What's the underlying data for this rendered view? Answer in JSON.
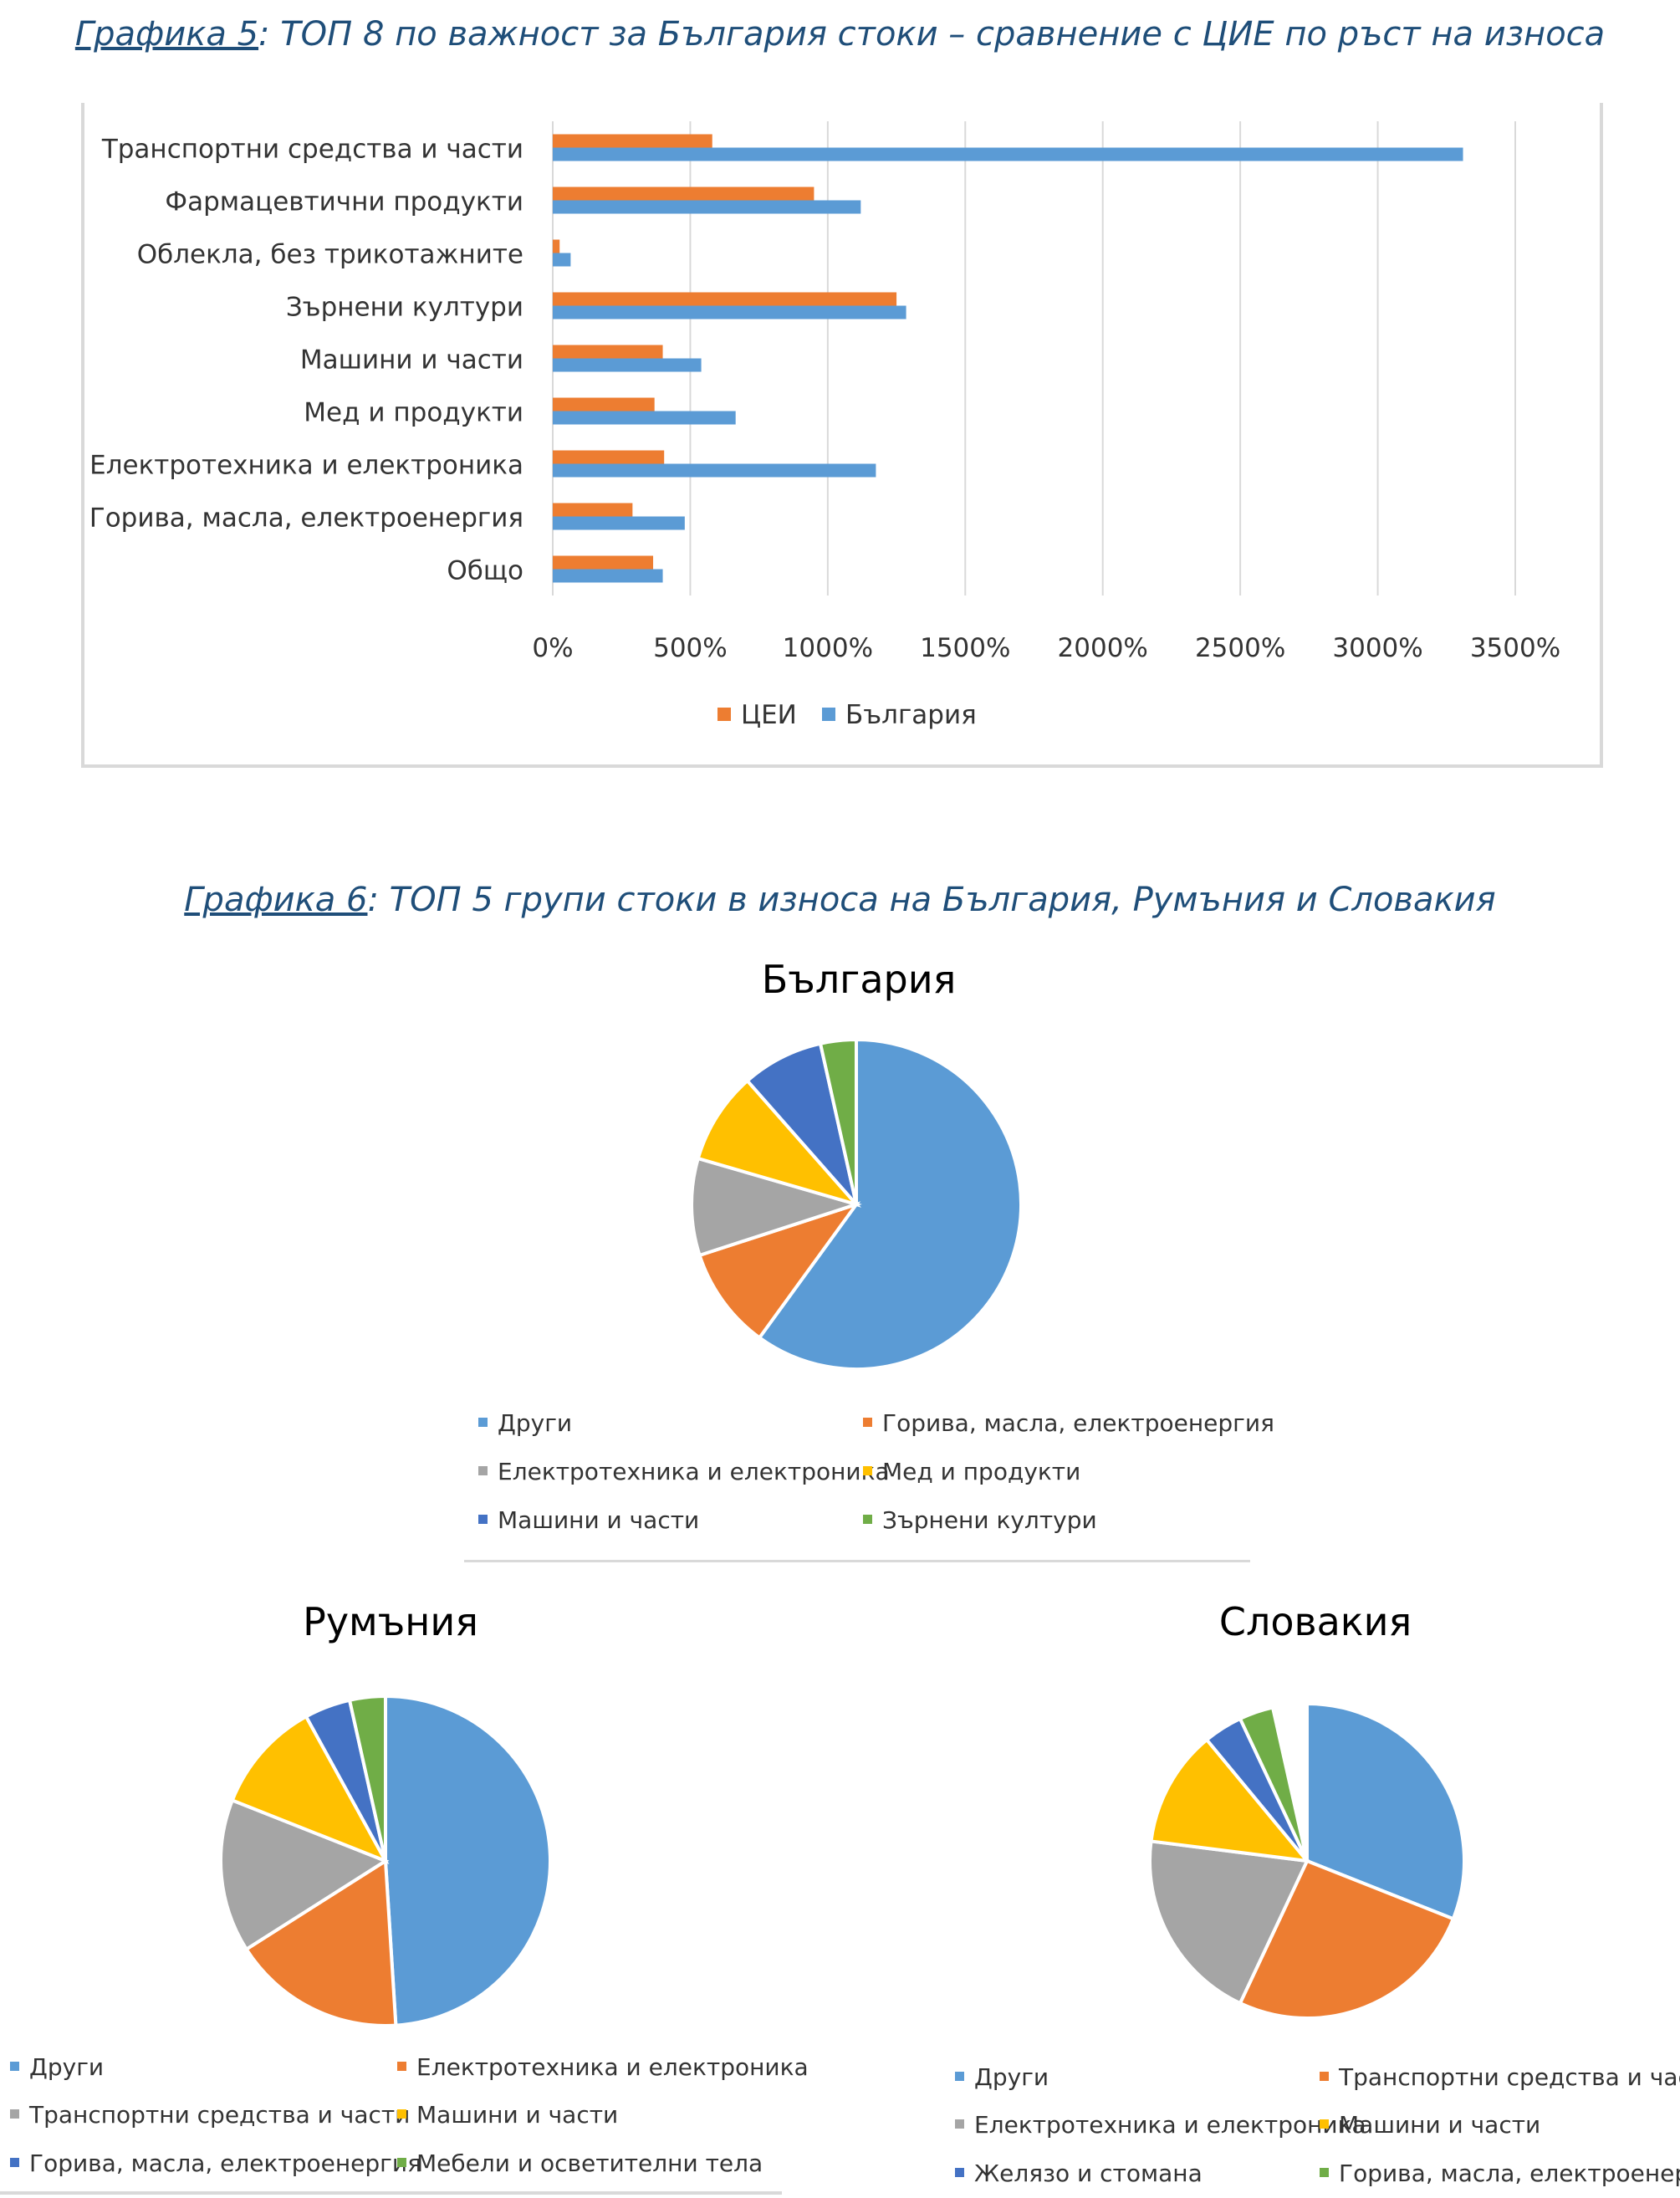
{
  "fig5": {
    "ref": "Графика 5",
    "caption": ": ТОП 8 по важност за България стоки – сравнение с ЦИЕ по ръст на износа"
  },
  "fig6": {
    "ref": "Графика 6",
    "caption": ": ТОП 5 групи стоки в износа на България, Румъния и Словакия"
  },
  "colors": {
    "blue": "#5b9bd5",
    "orange": "#ed7d31",
    "gray": "#a5a5a5",
    "yellow": "#ffc000",
    "darkblue": "#4472c4",
    "green": "#70ad47",
    "grid": "#d9d9d9"
  },
  "chart_data": [
    {
      "type": "bar",
      "orientation": "horizontal",
      "title": "",
      "categories": [
        "Транспортни средства и части",
        "Фармацевтични продукти",
        "Облекла, без трикотажните",
        "Зърнени култури",
        "Машини и части",
        "Мед и продукти",
        "Електротехника и електроника",
        "Горива, масла, електроенергия",
        "Общо"
      ],
      "series": [
        {
          "name": "ЦЕИ",
          "color": "#ed7d31",
          "values": [
            580,
            950,
            25,
            1250,
            400,
            370,
            405,
            290,
            365
          ]
        },
        {
          "name": "България",
          "color": "#5b9bd5",
          "values": [
            3310,
            1120,
            65,
            1285,
            540,
            665,
            1175,
            480,
            400
          ]
        }
      ],
      "xlim": [
        0,
        3500
      ],
      "xticks": [
        "0%",
        "500%",
        "1000%",
        "1500%",
        "2000%",
        "2500%",
        "3000%",
        "3500%"
      ],
      "grid": true,
      "legend_position": "bottom"
    },
    {
      "type": "pie",
      "title": "България",
      "labels": [
        "Други",
        "Горива, масла, електроенергия",
        "Електротехника и електроника",
        "Мед и продукти",
        "Машини и части",
        "Зърнени култури"
      ],
      "values": [
        0.6,
        0.1,
        0.095,
        0.09,
        0.08,
        0.035
      ],
      "colors": [
        "#5b9bd5",
        "#ed7d31",
        "#a5a5a5",
        "#ffc000",
        "#4472c4",
        "#70ad47"
      ],
      "legend_position": "bottom"
    },
    {
      "type": "pie",
      "title": "Румъния",
      "labels": [
        "Други",
        "Електротехника и електроника",
        "Транспортни средства и части",
        "Машини и части",
        "Горива, масла, електроенергия",
        "Мебели и осветителни тела"
      ],
      "values": [
        0.49,
        0.17,
        0.15,
        0.11,
        0.045,
        0.035
      ],
      "colors": [
        "#5b9bd5",
        "#ed7d31",
        "#a5a5a5",
        "#ffc000",
        "#4472c4",
        "#70ad47"
      ],
      "legend_position": "bottom"
    },
    {
      "type": "pie",
      "title": "Словакия",
      "labels": [
        "Други",
        "Транспортни средства и части",
        "Електротехника и електроника",
        "Машини и части",
        "Желязо и стомана",
        "Горива, масла, електроенергия"
      ],
      "values": [
        0.31,
        0.26,
        0.2,
        0.12,
        0.04,
        0.035
      ],
      "colors": [
        "#5b9bd5",
        "#ed7d31",
        "#a5a5a5",
        "#ffc000",
        "#4472c4",
        "#70ad47"
      ],
      "legend_position": "bottom"
    }
  ]
}
